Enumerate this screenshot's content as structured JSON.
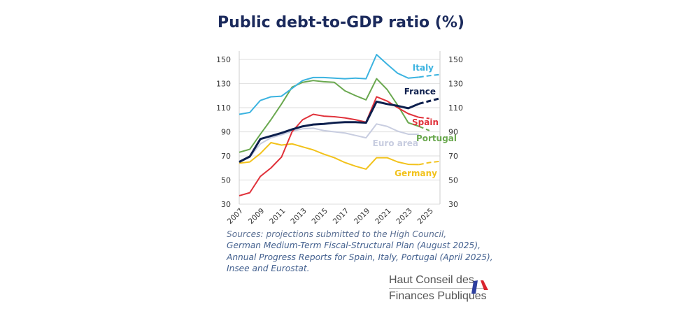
{
  "chart_data": {
    "type": "line",
    "title": "Public debt-to-GDP ratio (%)",
    "x_ticks": [
      "2007",
      "2009",
      "2011",
      "2013",
      "2015",
      "2017",
      "2019",
      "2021",
      "2023",
      "2025"
    ],
    "xlim": [
      2007,
      2026
    ],
    "ylim": [
      30,
      150
    ],
    "y_ticks": [
      30,
      50,
      70,
      90,
      110,
      130,
      150
    ],
    "y_axis": "both sides",
    "grid": "horizontal",
    "legend": "inline labels at line ends",
    "note": "dashed segments are projections",
    "series": [
      {
        "name": "Italy",
        "color": "#3bb3e0",
        "x_start": 2007,
        "values": [
          104.5,
          106,
          116,
          119,
          119.5,
          126,
          132.5,
          135,
          135,
          134.5,
          134,
          134.5,
          134,
          154,
          146,
          138.5,
          134.5,
          135.3
        ],
        "projection": [
          135.3,
          136.5,
          137.5
        ]
      },
      {
        "name": "France",
        "color": "#0d1f4d",
        "x_start": 2007,
        "values": [
          65,
          69.5,
          84,
          86.5,
          89,
          92,
          94.5,
          96,
          96.5,
          97.5,
          98,
          98,
          97.5,
          115,
          113,
          111.5,
          109.5,
          113.2
        ],
        "projection": [
          113.2,
          115.5,
          117.7
        ]
      },
      {
        "name": "Spain",
        "color": "#e0313a",
        "x_start": 2007,
        "values": [
          37,
          39.5,
          53,
          60,
          69,
          90,
          100,
          104.5,
          103,
          102.5,
          101.5,
          100,
          98,
          119,
          115.5,
          110,
          105,
          102
        ],
        "projection": [
          102,
          101
        ]
      },
      {
        "name": "Portugal",
        "color": "#6aa84f",
        "x_start": 2007,
        "values": [
          73,
          75.5,
          88,
          100,
          113,
          127,
          131,
          132.5,
          131.5,
          131,
          124,
          120,
          116.5,
          134,
          125,
          112,
          97.5,
          94.5
        ],
        "projection": [
          94.5,
          91
        ]
      },
      {
        "name": "Euro area",
        "color": "#c8cde0",
        "x_start": 2007,
        "values": [
          65,
          69,
          80,
          85,
          87.5,
          90.5,
          92.5,
          93,
          91,
          90,
          89,
          87,
          85,
          96.5,
          94.5,
          90.5,
          88,
          88
        ],
        "projection": []
      },
      {
        "name": "Germany",
        "color": "#f2c21b",
        "x_start": 2007,
        "values": [
          64,
          65,
          72,
          81,
          79,
          80,
          77.5,
          75,
          71.5,
          68.5,
          64.5,
          61.5,
          59,
          68.5,
          68.5,
          65,
          63,
          62.8
        ],
        "projection": [
          62.8,
          64.5,
          65.5
        ]
      }
    ]
  },
  "sources": [
    "Sources: projections submitted to the High Council,",
    "German Medium-Term Fiscal-Structural Plan (August 2025),",
    "Annual Progress Reports for Spain, Italy, Portugal (April 2025),",
    "Insee and Eurostat."
  ],
  "logo": {
    "line1": "Haut Conseil des",
    "line2": "Finances Publiques"
  }
}
